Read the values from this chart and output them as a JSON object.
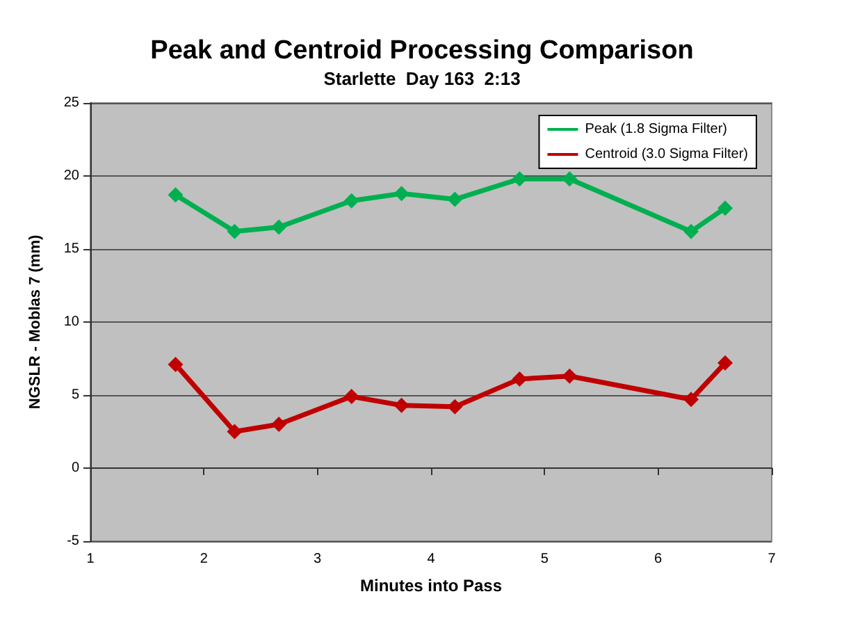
{
  "chart_data": {
    "type": "line",
    "title": "Peak and Centroid Processing Comparison",
    "subtitle": "Starlette  Day 163  2:13",
    "xlabel": "Minutes into Pass",
    "ylabel": "NGSLR - Moblas 7 (mm)",
    "x": [
      1.75,
      2.27,
      2.66,
      3.3,
      3.74,
      4.21,
      4.78,
      5.22,
      6.29,
      6.59
    ],
    "series": [
      {
        "name": "Peak (1.8 Sigma Filter)",
        "color": "#00b050",
        "values": [
          18.7,
          16.2,
          16.5,
          18.3,
          18.8,
          18.4,
          19.8,
          19.8,
          16.2,
          17.8
        ]
      },
      {
        "name": "Centroid (3.0 Sigma Filter)",
        "color": "#c00000",
        "values": [
          7.1,
          2.5,
          3.0,
          4.9,
          4.3,
          4.2,
          6.1,
          6.3,
          4.7,
          7.2
        ]
      }
    ],
    "xlim": [
      1,
      7
    ],
    "xticks": [
      1,
      2,
      3,
      4,
      5,
      6,
      7
    ],
    "ylim": [
      -5,
      25
    ],
    "yticks": [
      -5,
      0,
      5,
      10,
      15,
      20,
      25
    ],
    "grid": "y",
    "legend": "top right",
    "marker": "diamond",
    "line_style": "solid"
  }
}
